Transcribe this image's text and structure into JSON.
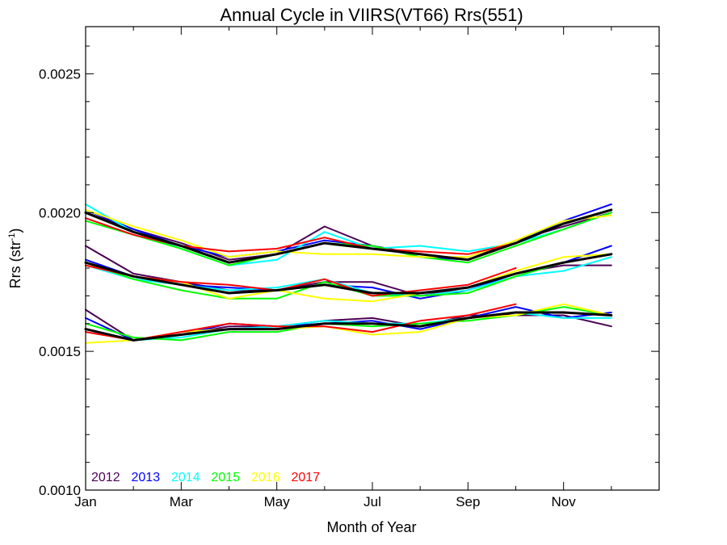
{
  "chart_data": {
    "type": "line",
    "title": "Annual Cycle in VIIRS(VT66) Rrs(551)",
    "xlabel": "Month of Year",
    "ylabel_base": "Rrs (str",
    "ylabel_sup": "-1",
    "ylabel_close": ")",
    "x_ticks": [
      "Jan",
      "Mar",
      "May",
      "Jul",
      "Sep",
      "Nov"
    ],
    "x_tick_positions": [
      1,
      3,
      5,
      7,
      9,
      11
    ],
    "xlim": [
      1,
      13
    ],
    "ylim": [
      0.001,
      0.00267
    ],
    "y_ticks": [
      "0.0010",
      "0.0015",
      "0.0020",
      "0.0025"
    ],
    "y_tick_values": [
      0.001,
      0.0015,
      0.002,
      0.0025
    ],
    "y_minor_step": 0.0001,
    "grid": false,
    "legend_position": "bottom-left",
    "months": [
      1,
      2,
      3,
      4,
      5,
      6,
      7,
      8,
      9,
      10,
      11,
      12
    ],
    "groups": [
      {
        "series": [
          {
            "name": "2012",
            "color": "#4b0055",
            "values": [
              0.002,
              0.00194,
              0.00189,
              0.00183,
              0.00185,
              0.00195,
              0.00188,
              0.00185,
              0.00183,
              0.0019,
              0.00195,
              0.002
            ]
          },
          {
            "name": "2013",
            "color": "#0000ff",
            "values": [
              0.00201,
              0.00194,
              0.00188,
              0.00184,
              0.00186,
              0.0019,
              0.00188,
              0.00184,
              0.00183,
              0.00189,
              0.00197,
              0.00203
            ]
          },
          {
            "name": "2014",
            "color": "#00ffff",
            "values": [
              0.00203,
              0.00193,
              0.00187,
              0.00181,
              0.00183,
              0.00193,
              0.00187,
              0.00188,
              0.00186,
              0.00189,
              0.00194,
              0.002
            ]
          },
          {
            "name": "2015",
            "color": "#00ff00",
            "values": [
              0.00197,
              0.00192,
              0.00187,
              0.00181,
              0.00185,
              0.00189,
              0.00188,
              0.00184,
              0.00182,
              0.00188,
              0.00194,
              0.002
            ]
          },
          {
            "name": "2016",
            "color": "#ffff00",
            "values": [
              0.00201,
              0.00195,
              0.0019,
              0.00184,
              0.00186,
              0.00185,
              0.00185,
              0.00184,
              0.00184,
              0.0019,
              0.00197,
              0.00199
            ]
          },
          {
            "name": "2017",
            "color": "#ff0000",
            "values": [
              0.00198,
              0.00192,
              0.00188,
              0.00186,
              0.00187,
              0.00191,
              0.00187,
              0.00186,
              0.00185,
              0.00189,
              null,
              null
            ]
          }
        ],
        "mean": [
          0.002,
          0.00193,
          0.00188,
          0.00182,
          0.00185,
          0.00189,
          0.00187,
          0.00185,
          0.00183,
          0.00189,
          0.00196,
          0.00201
        ]
      },
      {
        "series": [
          {
            "name": "2012",
            "color": "#4b0055",
            "values": [
              0.00188,
              0.00178,
              0.00175,
              0.00172,
              0.00172,
              0.00175,
              0.00175,
              0.0017,
              0.00173,
              0.00178,
              0.00181,
              0.00181
            ]
          },
          {
            "name": "2013",
            "color": "#0000ff",
            "values": [
              0.00183,
              0.00177,
              0.00174,
              0.00173,
              0.00172,
              0.00174,
              0.00173,
              0.00169,
              0.00172,
              0.00178,
              0.00182,
              0.00188
            ]
          },
          {
            "name": "2014",
            "color": "#00ffff",
            "values": [
              0.00181,
              0.00176,
              0.00174,
              0.00172,
              0.00173,
              0.00176,
              0.00171,
              0.0017,
              0.00172,
              0.00177,
              0.00179,
              0.00184
            ]
          },
          {
            "name": "2015",
            "color": "#00ff00",
            "values": [
              0.00182,
              0.00176,
              0.00172,
              0.00169,
              0.00169,
              0.00175,
              0.0017,
              0.0017,
              0.00171,
              0.00177,
              0.00182,
              0.00185
            ]
          },
          {
            "name": "2016",
            "color": "#ffff00",
            "values": [
              0.00181,
              0.00177,
              0.00175,
              0.00169,
              0.00172,
              0.00169,
              0.00168,
              0.00171,
              0.00173,
              0.00179,
              0.00184,
              0.00185
            ]
          },
          {
            "name": "2017",
            "color": "#ff0000",
            "values": [
              0.00181,
              0.00177,
              0.00175,
              0.00174,
              0.00172,
              0.00176,
              0.0017,
              0.00172,
              0.00174,
              0.0018,
              null,
              null
            ]
          }
        ],
        "mean": [
          0.00182,
          0.00177,
          0.00174,
          0.00171,
          0.00172,
          0.00174,
          0.00171,
          0.00171,
          0.00173,
          0.00178,
          0.00182,
          0.00185
        ]
      },
      {
        "series": [
          {
            "name": "2012",
            "color": "#4b0055",
            "values": [
              0.00165,
              0.00154,
              0.00156,
              0.00159,
              0.00159,
              0.00161,
              0.00162,
              0.00159,
              0.00163,
              0.00163,
              0.00163,
              0.00159
            ]
          },
          {
            "name": "2013",
            "color": "#0000ff",
            "values": [
              0.00162,
              0.00154,
              0.00156,
              0.0016,
              0.00159,
              0.0016,
              0.00161,
              0.00158,
              0.00162,
              0.00166,
              0.00162,
              0.00164
            ]
          },
          {
            "name": "2014",
            "color": "#00ffff",
            "values": [
              0.00158,
              0.00154,
              0.00155,
              0.00158,
              0.00159,
              0.00161,
              0.0016,
              0.0016,
              0.00162,
              0.00164,
              0.00162,
              0.00162
            ]
          },
          {
            "name": "2015",
            "color": "#00ff00",
            "values": [
              0.0016,
              0.00155,
              0.00154,
              0.00157,
              0.00157,
              0.0016,
              0.00159,
              0.0016,
              0.00161,
              0.00163,
              0.00166,
              0.00163
            ]
          },
          {
            "name": "2016",
            "color": "#ffff00",
            "values": [
              0.00153,
              0.00154,
              0.00157,
              0.00158,
              0.00158,
              0.00159,
              0.00156,
              0.00157,
              0.00162,
              0.00163,
              0.00167,
              0.00163
            ]
          },
          {
            "name": "2017",
            "color": "#ff0000",
            "values": [
              0.00157,
              0.00154,
              0.00157,
              0.0016,
              0.00159,
              0.00159,
              0.00157,
              0.00161,
              0.00163,
              0.00167,
              null,
              null
            ]
          }
        ],
        "mean": [
          0.00158,
          0.00154,
          0.00156,
          0.00158,
          0.00158,
          0.0016,
          0.0016,
          0.00159,
          0.00162,
          0.00164,
          0.00164,
          0.00163
        ]
      }
    ],
    "mean_color": "#000000"
  }
}
